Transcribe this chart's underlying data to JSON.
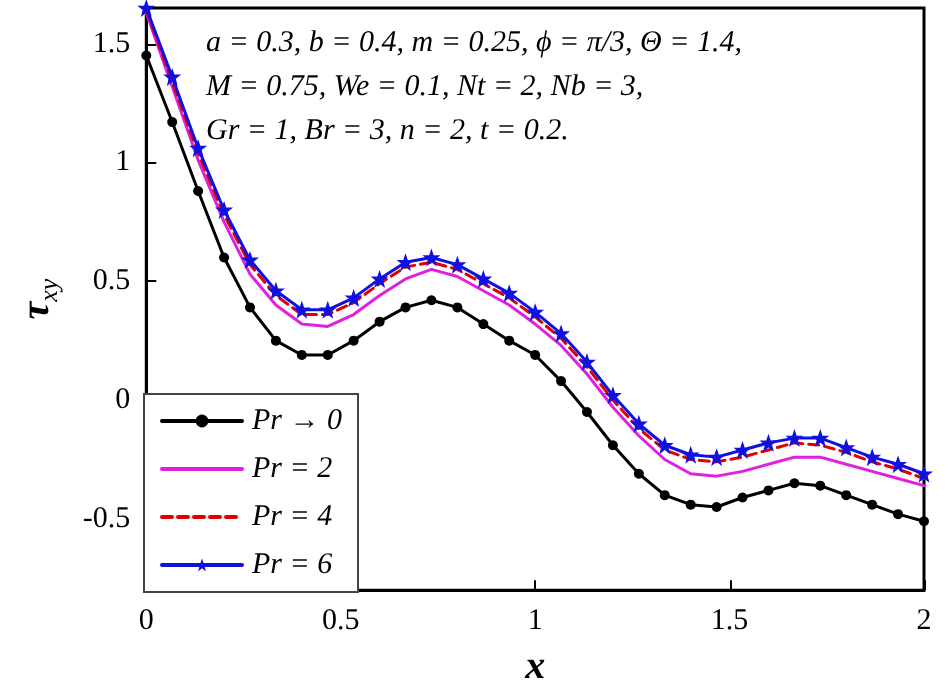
{
  "chart_data": {
    "type": "line",
    "xlabel": "x",
    "ylabel": "τ$_{xy}$",
    "annotations": [
      "a = 0.3, b = 0.4, m = 0.25, ϕ = π/3, Θ = 1.4,",
      "M = 0.75, We = 0.1, Nt = 2, Nb = 3,",
      "Gr = 1, Br = 3, n = 2, t = 0.2."
    ],
    "x": [
      0,
      0.0667,
      0.1333,
      0.2,
      0.2667,
      0.3333,
      0.4,
      0.4667,
      0.5333,
      0.6,
      0.6667,
      0.7333,
      0.8,
      0.8667,
      0.9333,
      1,
      1.0667,
      1.1333,
      1.2,
      1.2667,
      1.3333,
      1.4,
      1.4667,
      1.5333,
      1.6,
      1.6667,
      1.7333,
      1.8,
      1.8667,
      1.9333,
      2
    ],
    "series": [
      {
        "name": "Pr → 0",
        "color": "#000000",
        "marker": "circle",
        "line_style": "solid",
        "values": [
          1.45,
          1.17,
          0.88,
          0.6,
          0.39,
          0.25,
          0.19,
          0.19,
          0.25,
          0.33,
          0.39,
          0.42,
          0.39,
          0.32,
          0.25,
          0.19,
          0.08,
          -0.05,
          -0.19,
          -0.31,
          -0.4,
          -0.44,
          -0.45,
          -0.41,
          -0.38,
          -0.35,
          -0.36,
          -0.4,
          -0.44,
          -0.48,
          -0.51
        ]
      },
      {
        "name": "Pr = 2",
        "color": "#e020e0",
        "marker": "none",
        "line_style": "solid",
        "values": [
          1.63,
          1.32,
          1.01,
          0.75,
          0.53,
          0.4,
          0.32,
          0.31,
          0.36,
          0.44,
          0.51,
          0.55,
          0.52,
          0.46,
          0.4,
          0.32,
          0.23,
          0.11,
          -0.03,
          -0.15,
          -0.25,
          -0.31,
          -0.32,
          -0.3,
          -0.27,
          -0.24,
          -0.24,
          -0.27,
          -0.3,
          -0.33,
          -0.36
        ]
      },
      {
        "name": "Pr = 4",
        "color": "#e00000",
        "marker": "none",
        "line_style": "dashed",
        "values": [
          1.64,
          1.34,
          1.04,
          0.78,
          0.57,
          0.44,
          0.36,
          0.36,
          0.41,
          0.49,
          0.56,
          0.58,
          0.55,
          0.49,
          0.43,
          0.35,
          0.26,
          0.14,
          0,
          -0.12,
          -0.21,
          -0.25,
          -0.26,
          -0.24,
          -0.21,
          -0.18,
          -0.19,
          -0.22,
          -0.26,
          -0.29,
          -0.33
        ]
      },
      {
        "name": "Pr = 6",
        "color": "#1010e0",
        "marker": "star",
        "line_style": "solid",
        "values": [
          1.65,
          1.36,
          1.06,
          0.8,
          0.59,
          0.46,
          0.38,
          0.38,
          0.43,
          0.51,
          0.58,
          0.6,
          0.57,
          0.51,
          0.45,
          0.37,
          0.28,
          0.16,
          0.02,
          -0.1,
          -0.19,
          -0.23,
          -0.24,
          -0.21,
          -0.18,
          -0.16,
          -0.16,
          -0.2,
          -0.24,
          -0.27,
          -0.31
        ]
      }
    ],
    "xlim": [
      0,
      2
    ],
    "xticks": [
      0,
      0.5,
      1,
      1.5,
      2
    ],
    "ylim": [
      -0.8,
      1.65
    ],
    "yticks": [
      -0.5,
      0,
      0.5,
      1,
      1.5
    ],
    "grid": false,
    "legend": "bottom left"
  }
}
